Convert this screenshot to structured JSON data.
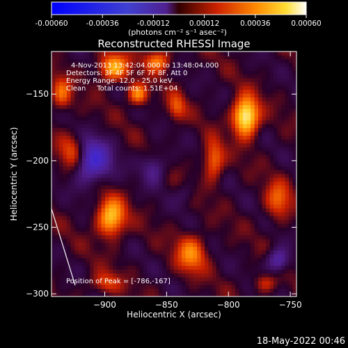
{
  "chart_data": {
    "type": "heatmap",
    "title": "Reconstructed RHESSI Image",
    "xlabel": "Heliocentric X (arcsec)",
    "ylabel": "Heliocentric Y (arcsec)",
    "xlim": [
      -943,
      -745
    ],
    "ylim": [
      -302,
      -118
    ],
    "xticks": [
      -900,
      -850,
      -800,
      -750
    ],
    "yticks": [
      -150,
      -200,
      -250,
      -300
    ],
    "colorbar": {
      "min": -0.0006,
      "max": 0.0006,
      "ticks": [
        "-0.00060",
        "-0.00036",
        "-0.00012",
        "0.00012",
        "0.00036",
        "0.00060"
      ],
      "units": "(photons cm⁻² s⁻¹ asec⁻²)"
    },
    "annotations": {
      "time_range": "4-Nov-2013 13:42:04.000 to 13:48:04.000",
      "detectors": "Detectors: 3F 4F 5F 6F 7F 8F, Att 0",
      "energy": "Energy Range: 12.0 - 25.0 keV",
      "method_counts": "Clean     Total counts: 1.51E+04",
      "peak": "Position of Peak = [-786,-167]"
    },
    "peak": [
      -786,
      -167
    ],
    "hotspots": [
      {
        "x": -786,
        "y": -167,
        "value": 0.0006,
        "rx": 10,
        "ry": 14
      },
      {
        "x": -895,
        "y": -243,
        "value": 0.00045,
        "rx": 11,
        "ry": 14
      },
      {
        "x": -893,
        "y": -130,
        "value": 0.0004,
        "rx": 12,
        "ry": 10
      },
      {
        "x": -873,
        "y": -150,
        "value": 0.00035,
        "rx": 8,
        "ry": 8
      },
      {
        "x": -925,
        "y": -195,
        "value": 0.00033,
        "rx": 11,
        "ry": 14
      },
      {
        "x": -830,
        "y": -270,
        "value": 0.0003,
        "rx": 12,
        "ry": 14
      },
      {
        "x": -812,
        "y": -200,
        "value": 0.0003,
        "rx": 8,
        "ry": 14
      },
      {
        "x": -857,
        "y": -125,
        "value": 0.0003,
        "rx": 10,
        "ry": 8
      },
      {
        "x": -935,
        "y": -150,
        "value": 0.00026,
        "rx": 8,
        "ry": 12
      },
      {
        "x": -760,
        "y": -230,
        "value": 0.00025,
        "rx": 10,
        "ry": 14
      },
      {
        "x": -842,
        "y": -160,
        "value": 0.00022,
        "rx": 7,
        "ry": 10
      },
      {
        "x": -900,
        "y": -292,
        "value": 0.0002,
        "rx": 12,
        "ry": 8
      },
      {
        "x": -770,
        "y": -292,
        "value": 0.00018,
        "rx": 9,
        "ry": 7
      },
      {
        "x": -912,
        "y": -200,
        "value": -0.00045,
        "rx": 16,
        "ry": 16
      },
      {
        "x": -760,
        "y": -275,
        "value": -0.0003,
        "rx": 9,
        "ry": 9
      },
      {
        "x": -860,
        "y": -205,
        "value": -0.0002,
        "rx": 10,
        "ry": 12
      },
      {
        "x": -835,
        "y": -225,
        "value": -0.0001,
        "rx": 8,
        "ry": 8
      }
    ]
  },
  "footer": {
    "timestamp": "18-May-2022 00:46"
  }
}
